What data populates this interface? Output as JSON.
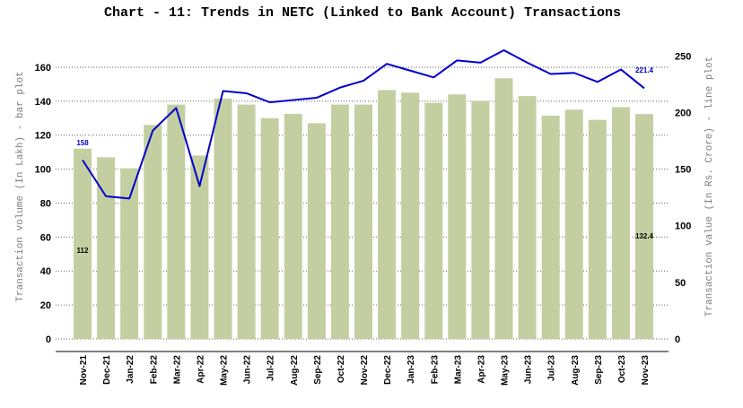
{
  "chart_data": {
    "type": "bar",
    "title": "Chart - 11: Trends in NETC (Linked to Bank Account) Transactions",
    "ylabel": "Transaction volume (In Lakh) - bar plot",
    "y2label": "Transaction value (In Rs. Crore) - line plot",
    "categories": [
      "Nov-21",
      "Dec-21",
      "Jan-22",
      "Feb-22",
      "Mar-22",
      "Apr-22",
      "May-22",
      "Jun-22",
      "Jul-22",
      "Aug-22",
      "Sep-22",
      "Oct-22",
      "Nov-22",
      "Dec-22",
      "Jan-23",
      "Feb-23",
      "Mar-23",
      "Apr-23",
      "May-23",
      "Jun-23",
      "Jul-23",
      "Aug-23",
      "Sep-23",
      "Oct-23",
      "Nov-23"
    ],
    "ylim": [
      0,
      170
    ],
    "y2lim": [
      0,
      255
    ],
    "yticks": [
      0,
      20,
      40,
      60,
      80,
      100,
      120,
      140,
      160
    ],
    "y2ticks": [
      0,
      50,
      100,
      150,
      200,
      250
    ],
    "grid": true,
    "series": [
      {
        "type": "bar",
        "axis": "left",
        "color": "#c3cfa1",
        "values": [
          112,
          107,
          100.5,
          126,
          138,
          108,
          141.5,
          138,
          130,
          132.5,
          127,
          138,
          138,
          146.5,
          145,
          139,
          144,
          140,
          153.5,
          143,
          131.5,
          135,
          129,
          136.5,
          132.4
        ]
      },
      {
        "type": "line",
        "axis": "right",
        "color": "#0000cc",
        "values": [
          158,
          126,
          124,
          184,
          204,
          135,
          219,
          217,
          209,
          211,
          213,
          222,
          228,
          243,
          237,
          231,
          246,
          244,
          255,
          244,
          234,
          235,
          227,
          238,
          221.4
        ]
      }
    ],
    "data_labels": [
      {
        "series": 0,
        "index": 0,
        "text": "112"
      },
      {
        "series": 0,
        "index": 24,
        "text": "132.4"
      },
      {
        "series": 1,
        "index": 0,
        "text": "158"
      },
      {
        "series": 1,
        "index": 24,
        "text": "221.4"
      }
    ]
  }
}
